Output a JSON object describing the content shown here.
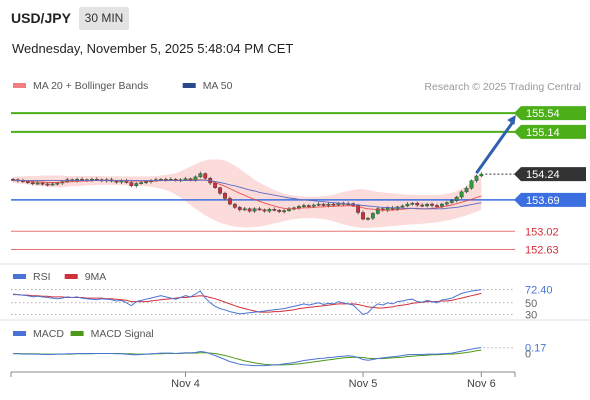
{
  "header": {
    "symbol": "USD/JPY",
    "timeframe": "30 MIN",
    "datetime": "Wednesday, November 5, 2025 5:48:04 PM CET"
  },
  "colors": {
    "bull": "#2e9a3a",
    "bear": "#c8323c",
    "ma20": "#e53935",
    "ma50": "#5c6bc0",
    "band_fill": "#fbd5d5",
    "resistance": "#4caf1a",
    "pivot": "#3b6fe0",
    "support": "#e57373",
    "current": "#333333",
    "arrow": "#2f5fb0",
    "rsi": "#4a74d4",
    "rsi_ma": "#d0303a",
    "macd": "#4a74d4",
    "macd_signal": "#4c9a1a",
    "muted_text": "#999999"
  },
  "chart_data": [
    {
      "type": "candlestick",
      "legend": [
        {
          "label": "MA 20 + Bollinger Bands",
          "color": "#f08080"
        },
        {
          "label": "MA 50",
          "color": "#2b4a8a"
        }
      ],
      "watermark": "Research © 2025 Trading Central",
      "ylim": [
        152.45,
        155.82
      ],
      "x_ticks": [
        {
          "label": "Nov 4",
          "index": 35
        },
        {
          "label": "Nov 5",
          "index": 71
        },
        {
          "label": "Nov 6",
          "index": 95
        }
      ],
      "levels": [
        {
          "label": "155.54",
          "value": 155.54,
          "kind": "resistance"
        },
        {
          "label": "155.14",
          "value": 155.14,
          "kind": "resistance"
        },
        {
          "label": "154.24",
          "value": 154.24,
          "kind": "current"
        },
        {
          "label": "153.69",
          "value": 153.69,
          "kind": "pivot"
        },
        {
          "label": "153.02",
          "value": 153.02,
          "kind": "support"
        },
        {
          "label": "152.63",
          "value": 152.63,
          "kind": "support"
        }
      ],
      "projection": {
        "from": {
          "index": 94,
          "value": 154.26
        },
        "to": {
          "index": 102,
          "value": 155.5
        }
      },
      "close_values": [
        154.12,
        154.1,
        154.08,
        154.06,
        154.04,
        154.05,
        154.03,
        154.02,
        154.03,
        154.05,
        154.08,
        154.12,
        154.1,
        154.13,
        154.12,
        154.11,
        154.13,
        154.12,
        154.1,
        154.12,
        154.09,
        154.07,
        154.1,
        154.06,
        153.99,
        154.04,
        154.06,
        154.08,
        154.1,
        154.12,
        154.13,
        154.12,
        154.13,
        154.11,
        154.12,
        154.14,
        154.12,
        154.18,
        154.25,
        154.15,
        154.05,
        153.95,
        153.83,
        153.72,
        153.6,
        153.53,
        153.48,
        153.5,
        153.45,
        153.5,
        153.48,
        153.45,
        153.49,
        153.47,
        153.44,
        153.46,
        153.5,
        153.52,
        153.55,
        153.57,
        153.56,
        153.58,
        153.6,
        153.57,
        153.6,
        153.58,
        153.62,
        153.6,
        153.61,
        153.57,
        153.42,
        153.28,
        153.3,
        153.4,
        153.5,
        153.47,
        153.52,
        153.49,
        153.54,
        153.56,
        153.6,
        153.62,
        153.58,
        153.56,
        153.6,
        153.57,
        153.55,
        153.6,
        153.63,
        153.67,
        153.75,
        153.86,
        153.94,
        154.1,
        154.2,
        154.24
      ],
      "ma20": [
        154.11,
        154.11,
        154.1,
        154.09,
        154.08,
        154.07,
        154.07,
        154.06,
        154.06,
        154.06,
        154.07,
        154.07,
        154.08,
        154.08,
        154.09,
        154.09,
        154.1,
        154.1,
        154.1,
        154.1,
        154.1,
        154.1,
        154.1,
        154.1,
        154.09,
        154.09,
        154.09,
        154.09,
        154.09,
        154.09,
        154.1,
        154.1,
        154.1,
        154.1,
        154.1,
        154.1,
        154.11,
        154.11,
        154.12,
        154.11,
        154.09,
        154.06,
        154.02,
        153.98,
        153.93,
        153.88,
        153.83,
        153.79,
        153.74,
        153.7,
        153.66,
        153.62,
        153.59,
        153.56,
        153.53,
        153.51,
        153.5,
        153.5,
        153.51,
        153.52,
        153.52,
        153.53,
        153.54,
        153.54,
        153.55,
        153.55,
        153.56,
        153.56,
        153.57,
        153.56,
        153.55,
        153.52,
        153.5,
        153.49,
        153.48,
        153.47,
        153.47,
        153.47,
        153.48,
        153.49,
        153.5,
        153.51,
        153.51,
        153.5,
        153.5,
        153.51,
        153.52,
        153.54,
        153.56,
        153.58,
        153.61,
        153.64,
        153.67,
        153.7,
        153.74,
        153.77
      ],
      "bb_upper": [
        154.18,
        154.19,
        154.19,
        154.2,
        154.2,
        154.2,
        154.21,
        154.21,
        154.21,
        154.21,
        154.21,
        154.2,
        154.2,
        154.2,
        154.2,
        154.2,
        154.2,
        154.2,
        154.2,
        154.19,
        154.19,
        154.19,
        154.19,
        154.19,
        154.19,
        154.19,
        154.19,
        154.19,
        154.19,
        154.2,
        154.21,
        154.22,
        154.24,
        154.26,
        154.3,
        154.35,
        154.4,
        154.45,
        154.5,
        154.53,
        154.55,
        154.55,
        154.55,
        154.53,
        154.48,
        154.42,
        154.35,
        154.27,
        154.2,
        154.12,
        154.06,
        154.0,
        153.95,
        153.9,
        153.86,
        153.82,
        153.8,
        153.78,
        153.77,
        153.76,
        153.76,
        153.76,
        153.76,
        153.77,
        153.78,
        153.8,
        153.83,
        153.86,
        153.88,
        153.9,
        153.92,
        153.92,
        153.9,
        153.88,
        153.86,
        153.85,
        153.84,
        153.83,
        153.82,
        153.81,
        153.8,
        153.8,
        153.79,
        153.79,
        153.79,
        153.79,
        153.79,
        153.8,
        153.82,
        153.84,
        153.88,
        153.93,
        153.99,
        154.06,
        154.13,
        154.2
      ],
      "bb_lower": [
        154.05,
        154.04,
        154.03,
        154.02,
        154.0,
        153.99,
        153.98,
        153.97,
        153.96,
        153.96,
        153.96,
        153.97,
        153.98,
        153.98,
        153.99,
        154.0,
        154.0,
        154.01,
        154.01,
        154.01,
        154.01,
        154.01,
        154.0,
        154.0,
        154.0,
        153.99,
        153.99,
        153.98,
        153.97,
        153.95,
        153.93,
        153.9,
        153.86,
        153.8,
        153.74,
        153.66,
        153.58,
        153.5,
        153.43,
        153.36,
        153.3,
        153.25,
        153.2,
        153.17,
        153.14,
        153.12,
        153.11,
        153.1,
        153.1,
        153.11,
        153.12,
        153.14,
        153.16,
        153.19,
        153.21,
        153.24,
        153.26,
        153.28,
        153.29,
        153.3,
        153.3,
        153.3,
        153.29,
        153.28,
        153.26,
        153.23,
        153.2,
        153.17,
        153.14,
        153.12,
        153.1,
        153.09,
        153.09,
        153.1,
        153.1,
        153.11,
        153.12,
        153.13,
        153.14,
        153.15,
        153.16,
        153.17,
        153.17,
        153.18,
        153.19,
        153.2,
        153.21,
        153.23,
        153.25,
        153.27,
        153.3,
        153.33,
        153.36,
        153.4,
        153.44,
        153.48
      ],
      "ma50": [
        154.1,
        154.1,
        154.1,
        154.1,
        154.1,
        154.1,
        154.1,
        154.1,
        154.1,
        154.1,
        154.1,
        154.1,
        154.1,
        154.1,
        154.1,
        154.1,
        154.1,
        154.1,
        154.1,
        154.1,
        154.1,
        154.1,
        154.1,
        154.1,
        154.1,
        154.1,
        154.1,
        154.1,
        154.1,
        154.1,
        154.1,
        154.1,
        154.1,
        154.1,
        154.1,
        154.1,
        154.1,
        154.1,
        154.11,
        154.11,
        154.1,
        154.08,
        154.06,
        154.04,
        154.01,
        153.99,
        153.96,
        153.93,
        153.9,
        153.88,
        153.85,
        153.83,
        153.81,
        153.79,
        153.77,
        153.75,
        153.73,
        153.72,
        153.7,
        153.69,
        153.68,
        153.67,
        153.66,
        153.65,
        153.64,
        153.63,
        153.62,
        153.61,
        153.6,
        153.59,
        153.58,
        153.57,
        153.56,
        153.55,
        153.54,
        153.53,
        153.53,
        153.52,
        153.52,
        153.51,
        153.51,
        153.51,
        153.5,
        153.5,
        153.5,
        153.5,
        153.5,
        153.5,
        153.51,
        153.52,
        153.53,
        153.55,
        153.57,
        153.59,
        153.61,
        153.63
      ]
    },
    {
      "type": "line",
      "legend": [
        {
          "label": "RSI",
          "color": "#4a74d4"
        },
        {
          "label": "9MA",
          "color": "#d0303a"
        }
      ],
      "ylim": [
        24,
        82
      ],
      "ticks": [
        {
          "label": "72.40",
          "value": 72.4
        },
        {
          "label": "50",
          "value": 50
        },
        {
          "label": "30",
          "value": 30
        }
      ],
      "series": [
        {
          "values": [
            65,
            64,
            63,
            62,
            60,
            61,
            60,
            59,
            58,
            57,
            58,
            60,
            59,
            60,
            58,
            57,
            56,
            55,
            57,
            56,
            55,
            53,
            54,
            50,
            45,
            52,
            54,
            56,
            58,
            60,
            62,
            60,
            58,
            56,
            59,
            62,
            60,
            65,
            70,
            58,
            50,
            44,
            40,
            38,
            35,
            33,
            31,
            32,
            33,
            34,
            35,
            36,
            37,
            38,
            39,
            40,
            42,
            44,
            46,
            48,
            46,
            48,
            50,
            47,
            49,
            48,
            52,
            50,
            48,
            46,
            38,
            30,
            33,
            42,
            48,
            46,
            50,
            48,
            52,
            53,
            55,
            56,
            52,
            51,
            54,
            52,
            50,
            55,
            56,
            58,
            62,
            66,
            68,
            70,
            71,
            72.4
          ]
        },
        {
          "values": [
            64,
            64,
            63,
            63,
            62,
            62,
            61,
            61,
            60,
            60,
            60,
            59,
            59,
            59,
            59,
            58,
            58,
            58,
            58,
            57,
            57,
            56,
            55,
            54,
            52,
            52,
            52,
            52,
            53,
            54,
            55,
            56,
            57,
            58,
            59,
            59,
            60,
            61,
            62,
            61,
            59,
            57,
            54,
            51,
            48,
            45,
            42,
            40,
            38,
            36,
            34,
            34,
            34,
            35,
            35,
            36,
            37,
            38,
            40,
            41,
            42,
            43,
            44,
            45,
            46,
            47,
            48,
            48,
            48,
            48,
            47,
            45,
            43,
            42,
            41,
            41,
            42,
            43,
            45,
            46,
            47,
            49,
            50,
            51,
            52,
            52,
            52,
            53,
            53,
            54,
            56,
            58,
            60,
            62,
            64,
            66
          ]
        }
      ]
    },
    {
      "type": "line",
      "legend": [
        {
          "label": "MACD",
          "color": "#4a74d4"
        },
        {
          "label": "MACD Signal",
          "color": "#4c9a1a"
        }
      ],
      "ylim": [
        -0.55,
        0.4
      ],
      "ticks": [
        {
          "label": "0.17",
          "value": 0.17
        },
        {
          "label": "0",
          "value": 0
        }
      ],
      "series": [
        {
          "values": [
            -0.01,
            -0.01,
            -0.02,
            -0.02,
            -0.02,
            -0.02,
            -0.03,
            -0.03,
            -0.03,
            -0.02,
            -0.02,
            -0.01,
            -0.01,
            0.0,
            0.0,
            0.0,
            0.0,
            0.0,
            0.0,
            0.0,
            0.0,
            -0.01,
            -0.01,
            -0.02,
            -0.04,
            -0.04,
            -0.03,
            -0.02,
            -0.01,
            0.0,
            0.01,
            0.01,
            0.01,
            0.0,
            0.01,
            0.02,
            0.02,
            0.03,
            0.06,
            0.04,
            -0.01,
            -0.06,
            -0.12,
            -0.18,
            -0.24,
            -0.28,
            -0.32,
            -0.34,
            -0.35,
            -0.36,
            -0.36,
            -0.36,
            -0.35,
            -0.34,
            -0.33,
            -0.31,
            -0.29,
            -0.27,
            -0.24,
            -0.21,
            -0.19,
            -0.17,
            -0.15,
            -0.14,
            -0.12,
            -0.11,
            -0.09,
            -0.08,
            -0.07,
            -0.08,
            -0.12,
            -0.18,
            -0.2,
            -0.18,
            -0.15,
            -0.13,
            -0.11,
            -0.1,
            -0.08,
            -0.06,
            -0.04,
            -0.03,
            -0.03,
            -0.03,
            -0.02,
            -0.02,
            -0.02,
            -0.01,
            0.0,
            0.01,
            0.04,
            0.07,
            0.1,
            0.13,
            0.16,
            0.17
          ]
        },
        {
          "values": [
            0.0,
            0.0,
            -0.01,
            -0.01,
            -0.01,
            -0.01,
            -0.02,
            -0.02,
            -0.02,
            -0.02,
            -0.02,
            -0.02,
            -0.02,
            -0.01,
            -0.01,
            -0.01,
            -0.01,
            0.0,
            0.0,
            0.0,
            0.0,
            0.0,
            0.0,
            -0.01,
            -0.01,
            -0.02,
            -0.02,
            -0.02,
            -0.02,
            -0.01,
            -0.01,
            0.0,
            0.0,
            0.0,
            0.0,
            0.01,
            0.01,
            0.01,
            0.02,
            0.02,
            0.01,
            0.0,
            -0.03,
            -0.06,
            -0.1,
            -0.14,
            -0.18,
            -0.22,
            -0.25,
            -0.28,
            -0.3,
            -0.32,
            -0.33,
            -0.34,
            -0.34,
            -0.34,
            -0.33,
            -0.32,
            -0.31,
            -0.29,
            -0.27,
            -0.25,
            -0.23,
            -0.21,
            -0.19,
            -0.17,
            -0.15,
            -0.13,
            -0.12,
            -0.11,
            -0.11,
            -0.12,
            -0.14,
            -0.15,
            -0.15,
            -0.15,
            -0.14,
            -0.13,
            -0.12,
            -0.11,
            -0.09,
            -0.08,
            -0.07,
            -0.06,
            -0.05,
            -0.04,
            -0.04,
            -0.03,
            -0.02,
            -0.02,
            -0.01,
            0.01,
            0.03,
            0.05,
            0.08,
            0.1
          ]
        }
      ]
    }
  ]
}
